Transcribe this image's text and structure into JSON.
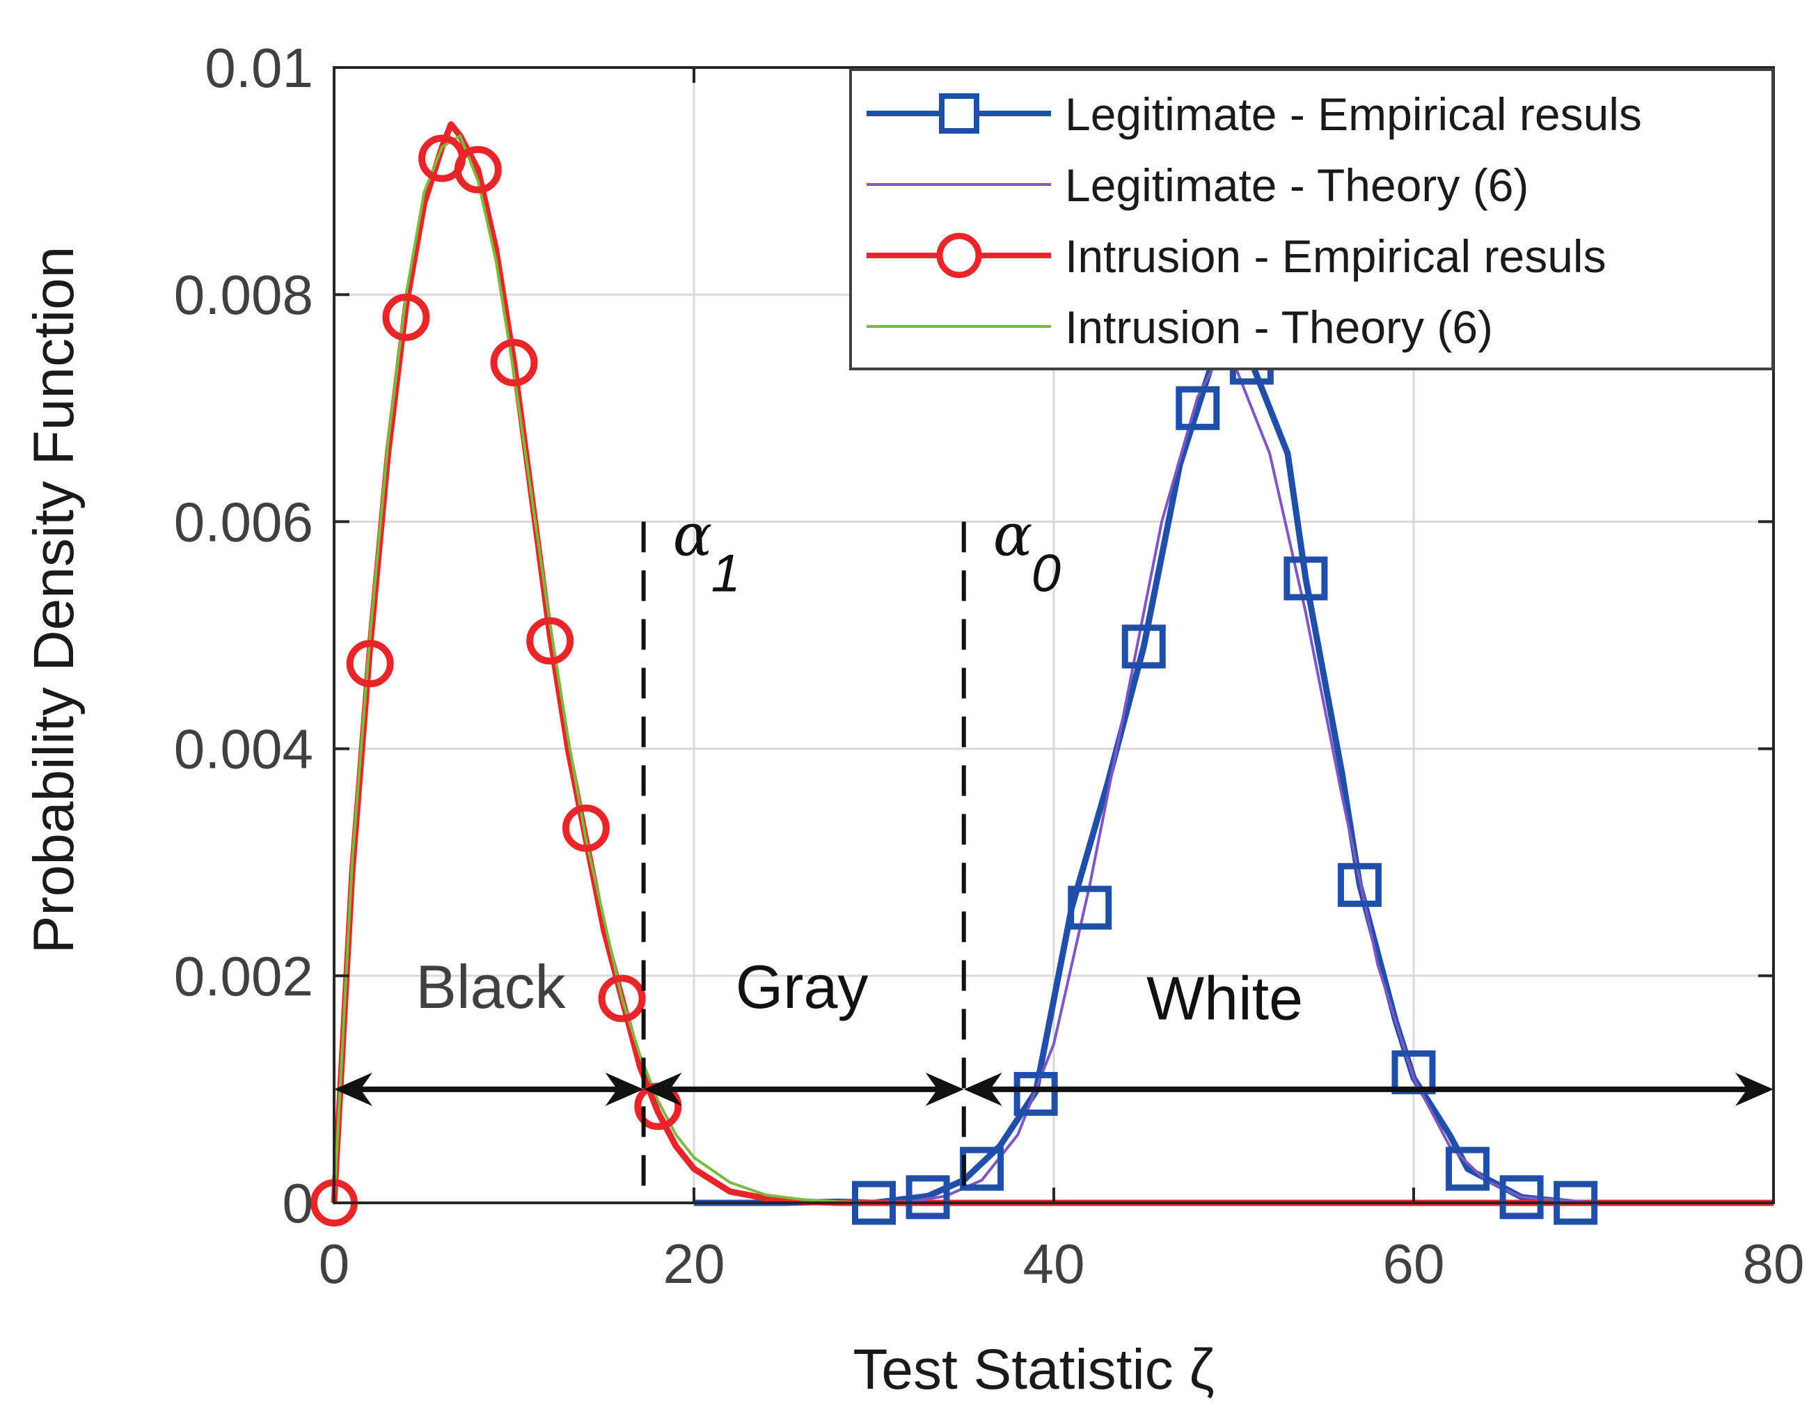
{
  "colors": {
    "legit_emp": "#1f4fa8",
    "legit_theory": "#7e57c2",
    "intr_emp": "#e8262a",
    "intr_theory": "#77bc3f",
    "grid": "#d9d9d9",
    "axis": "#262626",
    "annotation": "#111111"
  },
  "chart_data": {
    "type": "line",
    "title": "",
    "xlabel": "Test Statistic ζ",
    "ylabel": "Probability Density Function",
    "xlim": [
      0,
      80
    ],
    "ylim": [
      0,
      0.01
    ],
    "grid": true,
    "x_ticks": [
      0,
      20,
      40,
      60,
      80
    ],
    "x_tick_labels": [
      "0",
      "20",
      "40",
      "60",
      "80"
    ],
    "y_ticks": [
      0,
      0.002,
      0.004,
      0.006,
      0.008,
      0.01
    ],
    "y_tick_labels": [
      "0",
      "0.002",
      "0.004",
      "0.006",
      "0.008",
      "0.01"
    ],
    "legend_position": "top-right",
    "series": [
      {
        "name": "Legitimate - Empirical resuls",
        "color_key": "legit_emp",
        "marker": "square",
        "x": [
          20,
          25,
          28,
          30,
          33,
          35,
          37,
          39,
          41,
          43,
          45,
          47,
          48,
          49,
          51,
          53,
          54,
          56,
          57,
          59,
          60,
          62,
          63,
          66,
          69,
          75,
          80
        ],
        "y": [
          0,
          0,
          1e-05,
          0,
          6e-05,
          0.0002,
          0.0005,
          0.00098,
          0.0026,
          0.0037,
          0.0049,
          0.0065,
          0.007,
          0.0075,
          0.0074,
          0.0066,
          0.0055,
          0.0038,
          0.0028,
          0.0016,
          0.0011,
          0.0006,
          0.0003,
          5e-05,
          0,
          0,
          0
        ],
        "marker_x": [
          30,
          33,
          36,
          39,
          42,
          45,
          48,
          51,
          54,
          57,
          60,
          63,
          66,
          69
        ],
        "marker_y": [
          0,
          5e-05,
          0.0003,
          0.00096,
          0.0026,
          0.0049,
          0.007,
          0.0074,
          0.0055,
          0.0028,
          0.00115,
          0.0003,
          5e-05,
          0
        ]
      },
      {
        "name": "Legitimate - Theory (6)",
        "color_key": "legit_theory",
        "x": [
          20,
          28,
          32,
          34,
          36,
          38,
          40,
          42,
          44,
          46,
          48,
          49,
          50,
          52,
          54,
          56,
          58,
          60,
          62,
          64,
          66,
          70,
          80
        ],
        "y": [
          0,
          0,
          1e-05,
          6e-05,
          0.0002,
          0.0006,
          0.0014,
          0.0028,
          0.0044,
          0.006,
          0.0071,
          0.0074,
          0.0074,
          0.0066,
          0.0052,
          0.0036,
          0.0021,
          0.0011,
          0.0005,
          0.0002,
          5e-05,
          0,
          0
        ]
      },
      {
        "name": "Intrusion - Empirical resuls",
        "color_key": "intr_emp",
        "marker": "circle",
        "x": [
          0,
          1,
          2,
          3,
          4,
          5,
          6,
          6.5,
          7,
          8,
          9,
          10,
          11,
          12,
          13,
          14,
          15,
          16,
          17,
          18,
          19,
          20,
          22,
          24,
          26,
          28,
          30,
          35,
          40,
          80
        ],
        "y": [
          0,
          0.0029,
          0.0049,
          0.0066,
          0.0079,
          0.0088,
          0.0093,
          0.0095,
          0.0094,
          0.0091,
          0.0084,
          0.0074,
          0.0062,
          0.005,
          0.004,
          0.0032,
          0.0024,
          0.0018,
          0.0012,
          0.0008,
          0.0005,
          0.0003,
          0.0001,
          4e-05,
          1e-05,
          0,
          0,
          0,
          0,
          0
        ],
        "marker_x": [
          0,
          2,
          4,
          6,
          8,
          10,
          12,
          14,
          16,
          18
        ],
        "marker_y": [
          0,
          0.00475,
          0.0078,
          0.0092,
          0.0091,
          0.0074,
          0.00495,
          0.0033,
          0.0018,
          0.00085
        ]
      },
      {
        "name": "Intrusion - Theory (6)",
        "color_key": "intr_theory",
        "x": [
          0,
          1,
          2,
          3,
          4,
          5,
          6,
          7,
          8,
          9,
          10,
          11,
          12,
          13,
          14,
          15,
          16,
          17,
          18,
          19,
          20,
          22,
          24,
          26,
          28,
          30,
          35,
          40,
          80
        ],
        "y": [
          0,
          0.003,
          0.005,
          0.0067,
          0.008,
          0.0089,
          0.0093,
          0.0094,
          0.009,
          0.0083,
          0.0073,
          0.0062,
          0.0051,
          0.0041,
          0.0032,
          0.0025,
          0.0018,
          0.0013,
          0.0009,
          0.0006,
          0.0004,
          0.00018,
          7e-05,
          3e-05,
          1e-05,
          0,
          0,
          0,
          0
        ]
      }
    ],
    "thresholds": [
      {
        "x": 17.2,
        "label": "α",
        "subscript": "1",
        "y_top": 0.006
      },
      {
        "x": 35,
        "label": "α",
        "subscript": "0",
        "y_top": 0.006
      }
    ],
    "regions": [
      {
        "label": "Black",
        "x": 8.7,
        "y": 0.0019,
        "color": "#404040"
      },
      {
        "label": "Gray",
        "x": 26,
        "y": 0.0019,
        "color": "#111111"
      },
      {
        "label": "White",
        "x": 49.5,
        "y": 0.0018,
        "color": "#111111"
      }
    ],
    "arrows": [
      {
        "from": 0,
        "to": 17.2,
        "y": 0.001
      },
      {
        "from": 17.2,
        "to": 35,
        "y": 0.001
      },
      {
        "from": 35,
        "to": 80,
        "y": 0.001
      }
    ]
  }
}
